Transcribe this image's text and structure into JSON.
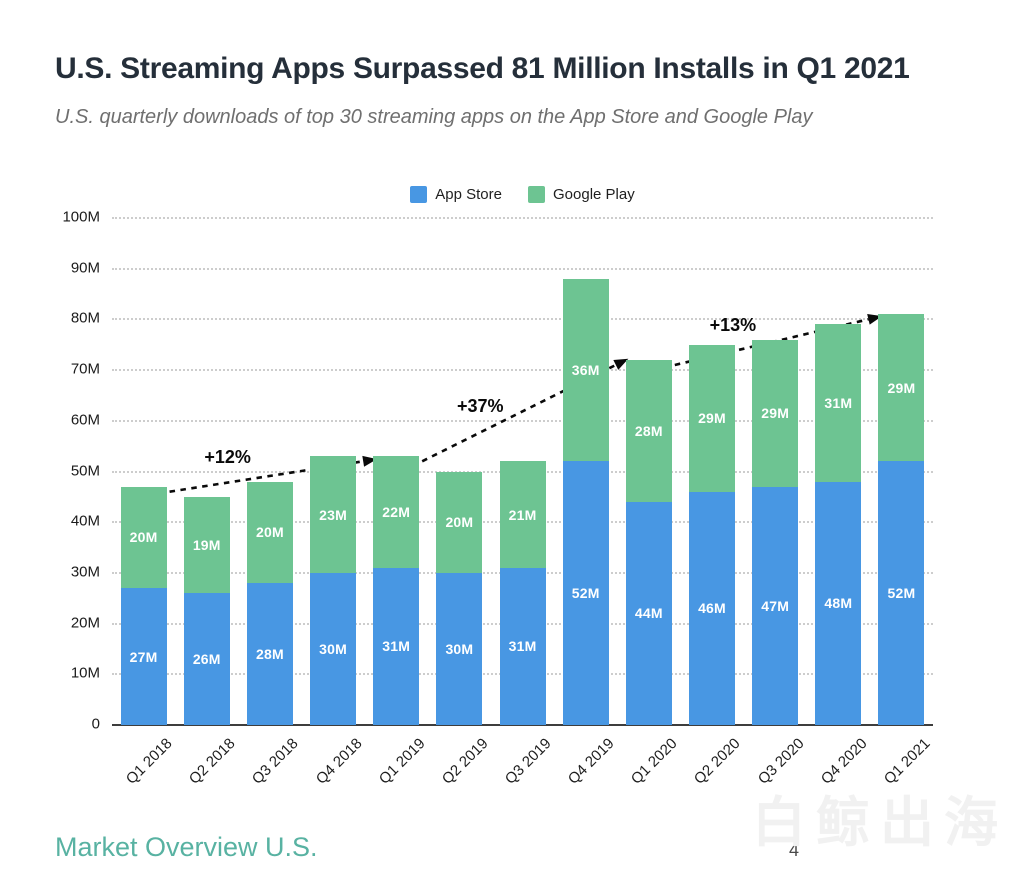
{
  "header": {
    "title": "U.S. Streaming Apps Surpassed 81 Million Installs in Q1 2021",
    "subtitle": "U.S. quarterly downloads of top 30 streaming apps on the App Store and Google Play"
  },
  "legend": {
    "items": [
      {
        "label": "App Store",
        "color": "#4897e3"
      },
      {
        "label": "Google Play",
        "color": "#6dc492"
      }
    ]
  },
  "chart_data": {
    "type": "bar",
    "stacked": true,
    "title": "U.S. Streaming Apps Surpassed 81 Million Installs in Q1 2021",
    "xlabel": "",
    "ylabel": "",
    "ylim": [
      0,
      100
    ],
    "value_suffix": "M",
    "grid": "dotted-horizontal",
    "legend_position": "top-center",
    "categories": [
      "Q1 2018",
      "Q2 2018",
      "Q3 2018",
      "Q4 2018",
      "Q1 2019",
      "Q2 2019",
      "Q3 2019",
      "Q4 2019",
      "Q1 2020",
      "Q2 2020",
      "Q3 2020",
      "Q4 2020",
      "Q1 2021"
    ],
    "series": [
      {
        "name": "App Store",
        "color": "#4897e3",
        "values": [
          27,
          26,
          28,
          30,
          31,
          30,
          31,
          52,
          44,
          46,
          47,
          48,
          52
        ]
      },
      {
        "name": "Google Play",
        "color": "#6dc492",
        "values": [
          20,
          19,
          20,
          23,
          22,
          20,
          21,
          36,
          28,
          29,
          29,
          31,
          29
        ]
      }
    ],
    "totals": [
      47,
      45,
      48,
      53,
      53,
      50,
      52,
      88,
      72,
      75,
      76,
      79,
      81
    ],
    "y_ticks": [
      {
        "value": 100,
        "label": "100M"
      },
      {
        "value": 90,
        "label": "90M"
      },
      {
        "value": 80,
        "label": "80M"
      },
      {
        "value": 70,
        "label": "70M"
      },
      {
        "value": 60,
        "label": "60M"
      },
      {
        "value": 50,
        "label": "50M"
      },
      {
        "value": 40,
        "label": "40M"
      },
      {
        "value": 30,
        "label": "30M"
      },
      {
        "value": 20,
        "label": "20M"
      },
      {
        "value": 10,
        "label": "10M"
      },
      {
        "value": 0,
        "label": "0"
      }
    ],
    "annotations": [
      {
        "label": "+12%",
        "from": 0,
        "to": 4
      },
      {
        "label": "+37%",
        "from": 4,
        "to": 8
      },
      {
        "label": "+13%",
        "from": 8,
        "to": 12
      }
    ]
  },
  "footer": {
    "label": "Market Overview U.S.",
    "page_number": "4",
    "watermark": "白鲸出海"
  },
  "colors": {
    "app_store_blue": "#4897e3",
    "google_play_green": "#6dc492",
    "title_text": "#252f3a",
    "subtitle_text": "#6f6f6f",
    "footer_teal": "#58b2a2",
    "annotation_black": "#0a0a0a",
    "gridline_gray": "#cdcdcd"
  }
}
